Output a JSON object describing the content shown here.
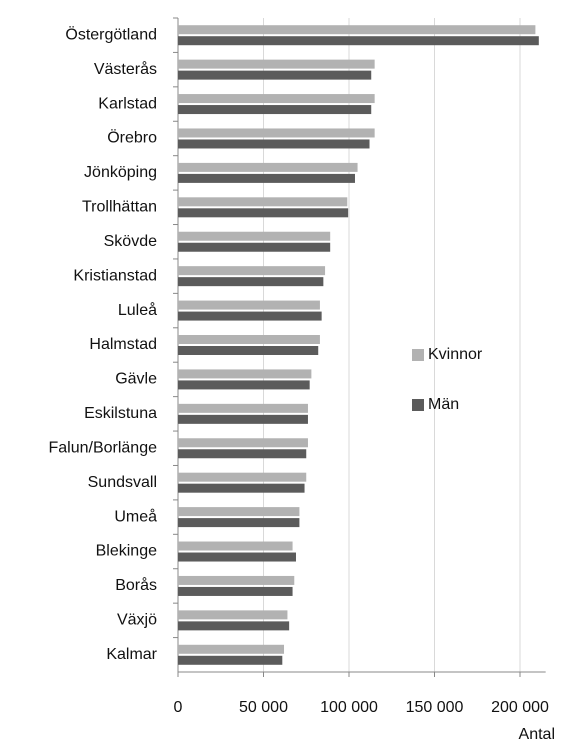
{
  "chart_data": {
    "type": "barh",
    "categories": [
      "Östergötland",
      "Västerås",
      "Karlstad",
      "Örebro",
      "Jönköping",
      "Trollhättan",
      "Skövde",
      "Kristianstad",
      "Luleå",
      "Halmstad",
      "Gävle",
      "Eskilstuna",
      "Falun/Borlänge",
      "Sundsvall",
      "Umeå",
      "Blekinge",
      "Borås",
      "Växjö",
      "Kalmar"
    ],
    "series": [
      {
        "name": "Kvinnor",
        "color": "#b2b2b2",
        "values": [
          209000,
          115000,
          115000,
          115000,
          105000,
          99000,
          89000,
          86000,
          83000,
          83000,
          78000,
          76000,
          76000,
          75000,
          71000,
          67000,
          68000,
          64000,
          62000
        ]
      },
      {
        "name": "Män",
        "color": "#5b5b5b",
        "values": [
          211000,
          113000,
          113000,
          112000,
          103500,
          99500,
          89000,
          85000,
          84000,
          82000,
          77000,
          76000,
          75000,
          74000,
          71000,
          69000,
          67000,
          65000,
          61000
        ]
      }
    ],
    "xlabel": "Antal",
    "xlim": [
      0,
      215000
    ],
    "xticks": [
      0,
      {
        "value": 50000,
        "label": "50 000"
      },
      {
        "value": 100000,
        "label": "100 000"
      },
      {
        "value": 150000,
        "label": "150 000"
      },
      {
        "value": 200000,
        "label": "200 000"
      }
    ],
    "grid": true,
    "legend": "right"
  }
}
